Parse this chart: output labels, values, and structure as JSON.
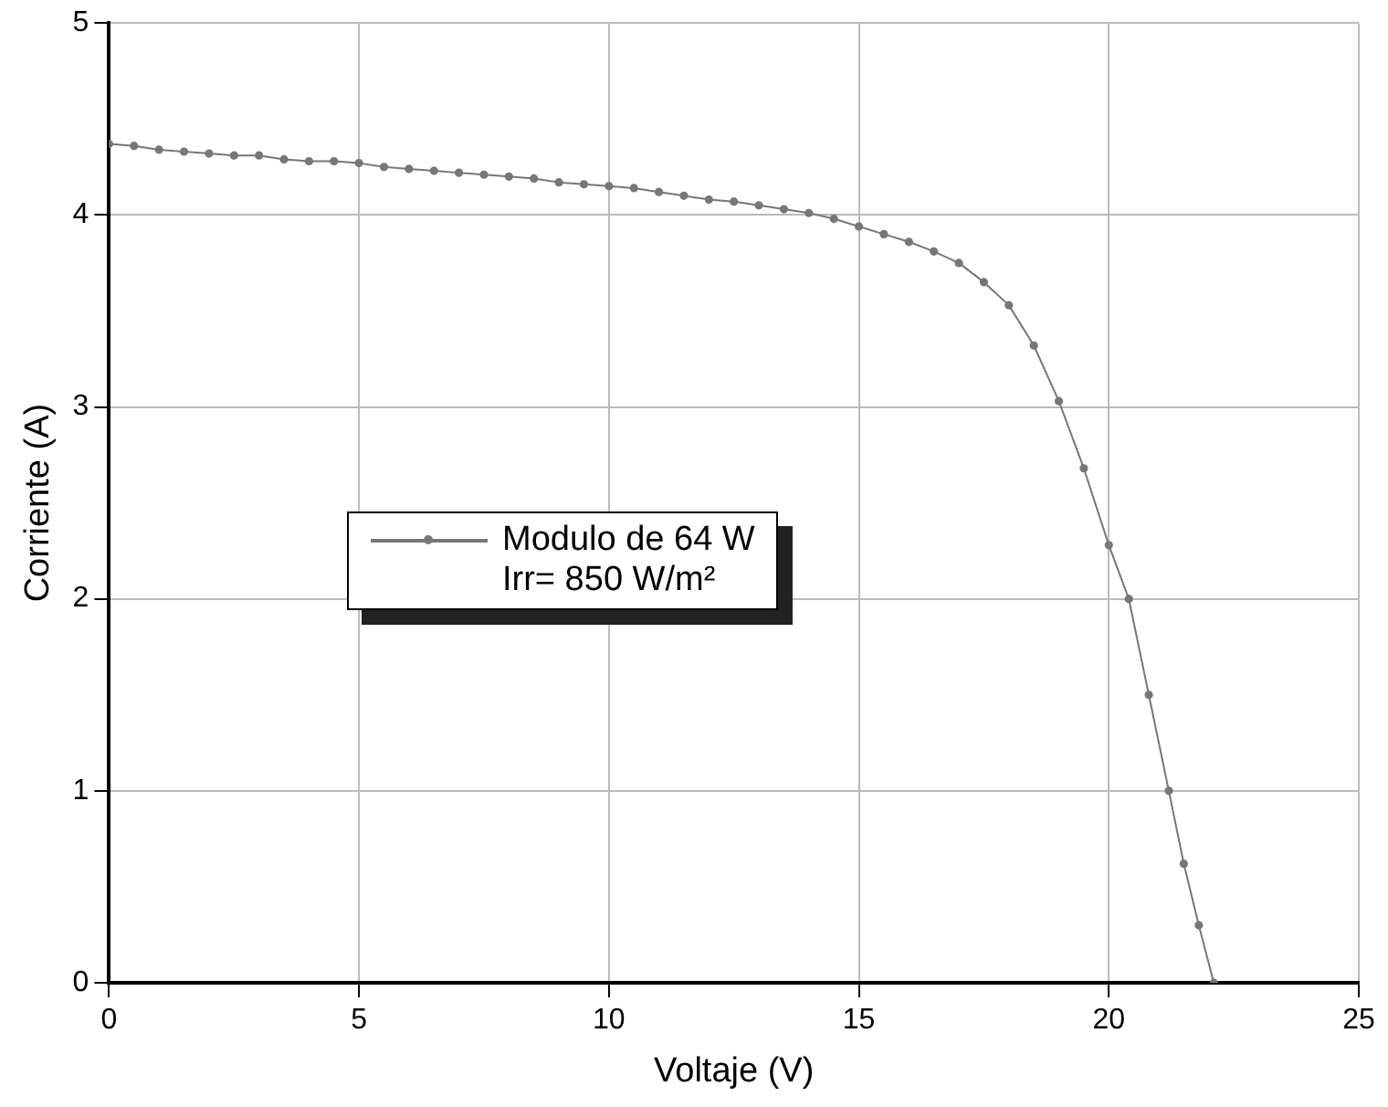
{
  "chart_data": {
    "type": "line",
    "xlabel": "Voltaje (V)",
    "ylabel": "Corriente (A)",
    "xlim": [
      0,
      25
    ],
    "xticks": [
      0,
      5,
      10,
      15,
      20,
      25
    ],
    "ylim": [
      0,
      5
    ],
    "yticks": [
      0,
      1,
      2,
      3,
      4,
      5
    ],
    "grid": true,
    "legend": "left",
    "marker": "circle",
    "line_style": "solid",
    "annotations": [
      "Irr= 850 W/m²"
    ],
    "series": [
      {
        "name": "Modulo de 64 W",
        "color": "#777777",
        "x": [
          0,
          0.5,
          1,
          1.5,
          2,
          2.5,
          3,
          3.5,
          4,
          4.5,
          5,
          5.5,
          6,
          6.5,
          7,
          7.5,
          8,
          8.5,
          9,
          9.5,
          10,
          10.5,
          11,
          11.5,
          12,
          12.5,
          13,
          13.5,
          14,
          14.5,
          15,
          15.5,
          16,
          16.5,
          17,
          17.5,
          18,
          18.5,
          19,
          19.5,
          20,
          20.4,
          20.8,
          21.2,
          21.5,
          21.8,
          22.1
        ],
        "values": [
          4.37,
          4.36,
          4.34,
          4.33,
          4.32,
          4.31,
          4.31,
          4.29,
          4.28,
          4.28,
          4.27,
          4.25,
          4.24,
          4.23,
          4.22,
          4.21,
          4.2,
          4.19,
          4.17,
          4.16,
          4.15,
          4.14,
          4.12,
          4.1,
          4.08,
          4.07,
          4.05,
          4.03,
          4.01,
          3.98,
          3.94,
          3.9,
          3.86,
          3.81,
          3.75,
          3.65,
          3.53,
          3.32,
          3.03,
          2.68,
          2.28,
          2.0,
          1.5,
          1.0,
          0.62,
          0.3,
          0
        ]
      }
    ]
  }
}
